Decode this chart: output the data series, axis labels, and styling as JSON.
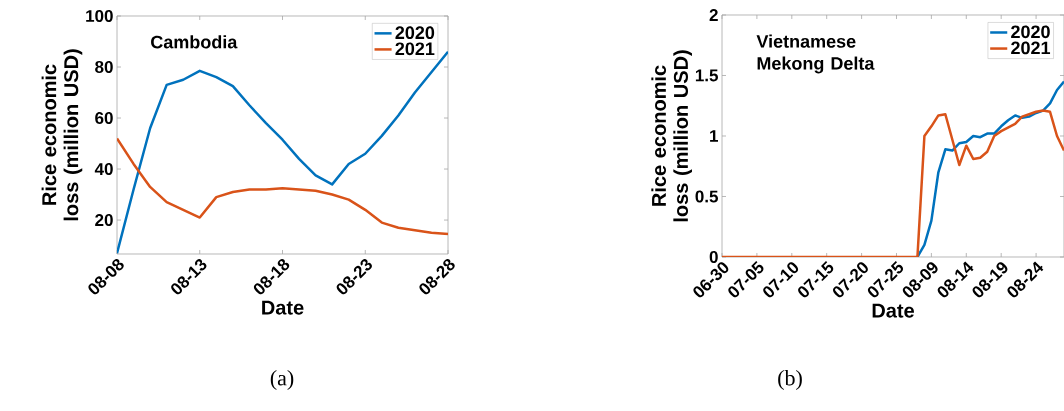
{
  "chart_data": [
    {
      "type": "line",
      "title": "Cambodia",
      "xlabel": "Date",
      "ylabel": "Rice economic loss (million USD)",
      "categories": [
        "08-08",
        null,
        null,
        null,
        null,
        "08-13",
        null,
        null,
        null,
        null,
        "08-18",
        null,
        null,
        null,
        null,
        "08-23",
        null,
        null,
        null,
        null,
        "08-28"
      ],
      "series": [
        {
          "name": "2020",
          "color": "#0072bd",
          "values": [
            7,
            32,
            56,
            73,
            75,
            78.5,
            76,
            72.5,
            65,
            58,
            51.5,
            44,
            37.5,
            34,
            42,
            46,
            53,
            61,
            70,
            78,
            86
          ]
        },
        {
          "name": "2021",
          "color": "#d95319",
          "values": [
            52,
            42,
            33,
            27,
            24,
            21,
            29,
            31,
            32,
            32,
            32.5,
            32,
            31.5,
            30,
            28,
            24,
            19,
            17,
            16,
            15,
            14.5
          ]
        }
      ],
      "ylim": [
        6.7,
        100
      ],
      "yticks": [
        20,
        40,
        60,
        80,
        100
      ],
      "legend": "top right",
      "annotations": [
        "(a)"
      ]
    },
    {
      "type": "line",
      "title": "Vietnamese Mekong Delta",
      "xlabel": "Date",
      "ylabel": "Rice economic loss (million USD)",
      "categories": [
        "06-30",
        null,
        null,
        null,
        null,
        "07-05",
        null,
        null,
        null,
        null,
        "07-10",
        null,
        null,
        null,
        null,
        "07-15",
        null,
        null,
        null,
        null,
        "07-20",
        null,
        null,
        null,
        null,
        "07-25",
        null,
        null,
        null,
        null,
        "08-09",
        null,
        null,
        null,
        null,
        "08-14",
        null,
        null,
        null,
        null,
        "08-19",
        null,
        null,
        null,
        null,
        "08-24",
        null,
        null,
        null,
        null
      ],
      "series": [
        {
          "name": "2020",
          "color": "#0072bd",
          "values": [
            null,
            null,
            null,
            null,
            null,
            null,
            null,
            null,
            null,
            null,
            null,
            null,
            null,
            null,
            null,
            null,
            null,
            null,
            null,
            null,
            null,
            null,
            null,
            null,
            null,
            null,
            null,
            null,
            0,
            0.1,
            0.3,
            0.7,
            0.89,
            0.88,
            0.94,
            0.95,
            1.0,
            0.99,
            1.02,
            1.02,
            1.08,
            1.13,
            1.17,
            1.15,
            1.16,
            1.19,
            1.21,
            1.27,
            1.38,
            1.45
          ]
        },
        {
          "name": "2021",
          "color": "#d95319",
          "values": [
            0,
            0,
            0,
            0,
            0,
            0,
            0,
            0,
            0,
            0,
            0,
            0,
            0,
            0,
            0,
            0,
            0,
            0,
            0,
            0,
            0,
            0,
            0,
            0,
            0,
            0,
            0,
            0,
            0,
            1.0,
            1.08,
            1.17,
            1.18,
            0.97,
            0.76,
            0.92,
            0.81,
            0.82,
            0.87,
            1.0,
            1.04,
            1.07,
            1.1,
            1.16,
            1.18,
            1.2,
            1.21,
            1.2,
            1.0,
            0.88
          ]
        }
      ],
      "ylim": [
        0,
        2
      ],
      "yticks": [
        0,
        0.5,
        1,
        1.5,
        2
      ],
      "legend": "top right",
      "annotations": [
        "(b)"
      ]
    }
  ]
}
